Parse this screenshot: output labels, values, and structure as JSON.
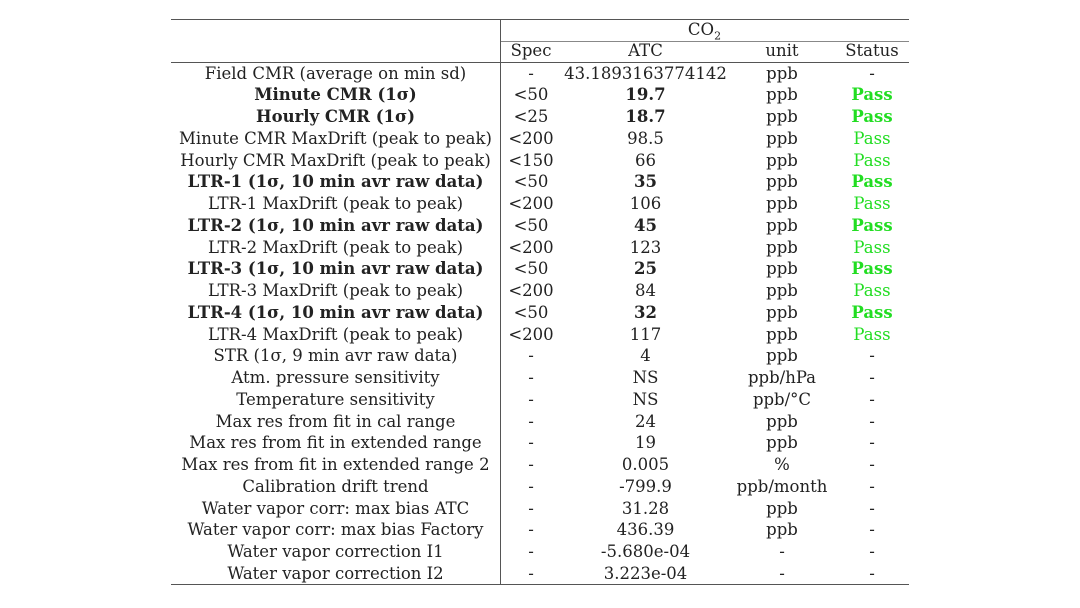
{
  "header": {
    "group_label": "CO",
    "group_sub": "2",
    "col_spec": "Spec",
    "col_atc": "ATC",
    "col_unit": "unit",
    "col_status": "Status"
  },
  "rows": [
    {
      "name": "Field CMR (average on min sd)",
      "spec": "-",
      "atc": "43.1893163774142",
      "unit": "ppb",
      "status": "-",
      "bold": false
    },
    {
      "name": "Minute CMR (1σ)",
      "spec": "<50",
      "atc": "19.7",
      "unit": "ppb",
      "status": "Pass",
      "bold": true
    },
    {
      "name": "Hourly CMR (1σ)",
      "spec": "<25",
      "atc": "18.7",
      "unit": "ppb",
      "status": "Pass",
      "bold": true
    },
    {
      "name": "Minute CMR MaxDrift (peak to peak)",
      "spec": "<200",
      "atc": "98.5",
      "unit": "ppb",
      "status": "Pass",
      "bold": false
    },
    {
      "name": "Hourly CMR MaxDrift (peak to peak)",
      "spec": "<150",
      "atc": "66",
      "unit": "ppb",
      "status": "Pass",
      "bold": false
    },
    {
      "name": "LTR-1 (1σ, 10 min avr raw data)",
      "spec": "<50",
      "atc": "35",
      "unit": "ppb",
      "status": "Pass",
      "bold": true
    },
    {
      "name": "LTR-1 MaxDrift (peak to peak)",
      "spec": "<200",
      "atc": "106",
      "unit": "ppb",
      "status": "Pass",
      "bold": false
    },
    {
      "name": "LTR-2 (1σ, 10 min avr raw data)",
      "spec": "<50",
      "atc": "45",
      "unit": "ppb",
      "status": "Pass",
      "bold": true
    },
    {
      "name": "LTR-2 MaxDrift (peak to peak)",
      "spec": "<200",
      "atc": "123",
      "unit": "ppb",
      "status": "Pass",
      "bold": false
    },
    {
      "name": "LTR-3 (1σ, 10 min avr raw data)",
      "spec": "<50",
      "atc": "25",
      "unit": "ppb",
      "status": "Pass",
      "bold": true
    },
    {
      "name": "LTR-3 MaxDrift (peak to peak)",
      "spec": "<200",
      "atc": "84",
      "unit": "ppb",
      "status": "Pass",
      "bold": false
    },
    {
      "name": "LTR-4 (1σ, 10 min avr raw data)",
      "spec": "<50",
      "atc": "32",
      "unit": "ppb",
      "status": "Pass",
      "bold": true
    },
    {
      "name": "LTR-4 MaxDrift (peak to peak)",
      "spec": "<200",
      "atc": "117",
      "unit": "ppb",
      "status": "Pass",
      "bold": false
    },
    {
      "name": "STR (1σ, 9 min avr raw data)",
      "spec": "-",
      "atc": "4",
      "unit": "ppb",
      "status": "-",
      "bold": false
    },
    {
      "name": "Atm. pressure sensitivity",
      "spec": "-",
      "atc": "NS",
      "unit": "ppb/hPa",
      "status": "-",
      "bold": false
    },
    {
      "name": "Temperature sensitivity",
      "spec": "-",
      "atc": "NS",
      "unit": "ppb/°C",
      "status": "-",
      "bold": false
    },
    {
      "name": "Max res from fit in cal range",
      "spec": "-",
      "atc": "24",
      "unit": "ppb",
      "status": "-",
      "bold": false
    },
    {
      "name": "Max res from fit in extended range",
      "spec": "-",
      "atc": "19",
      "unit": "ppb",
      "status": "-",
      "bold": false
    },
    {
      "name": "Max res from fit in extended range 2",
      "spec": "-",
      "atc": "0.005",
      "unit": "%",
      "status": "-",
      "bold": false
    },
    {
      "name": "Calibration drift trend",
      "spec": "-",
      "atc": "-799.9",
      "unit": "ppb/month",
      "status": "-",
      "bold": false
    },
    {
      "name": "Water vapor corr: max bias ATC",
      "spec": "-",
      "atc": "31.28",
      "unit": "ppb",
      "status": "-",
      "bold": false
    },
    {
      "name": "Water vapor corr: max bias Factory",
      "spec": "-",
      "atc": "436.39",
      "unit": "ppb",
      "status": "-",
      "bold": false
    },
    {
      "name": "Water vapor correction I1",
      "spec": "-",
      "atc": "-5.680e-04",
      "unit": "-",
      "status": "-",
      "bold": false
    },
    {
      "name": "Water vapor correction I2",
      "spec": "-",
      "atc": "3.223e-04",
      "unit": "-",
      "status": "-",
      "bold": false
    }
  ],
  "colors": {
    "pass": "#22dd22",
    "rule": "#555555"
  }
}
